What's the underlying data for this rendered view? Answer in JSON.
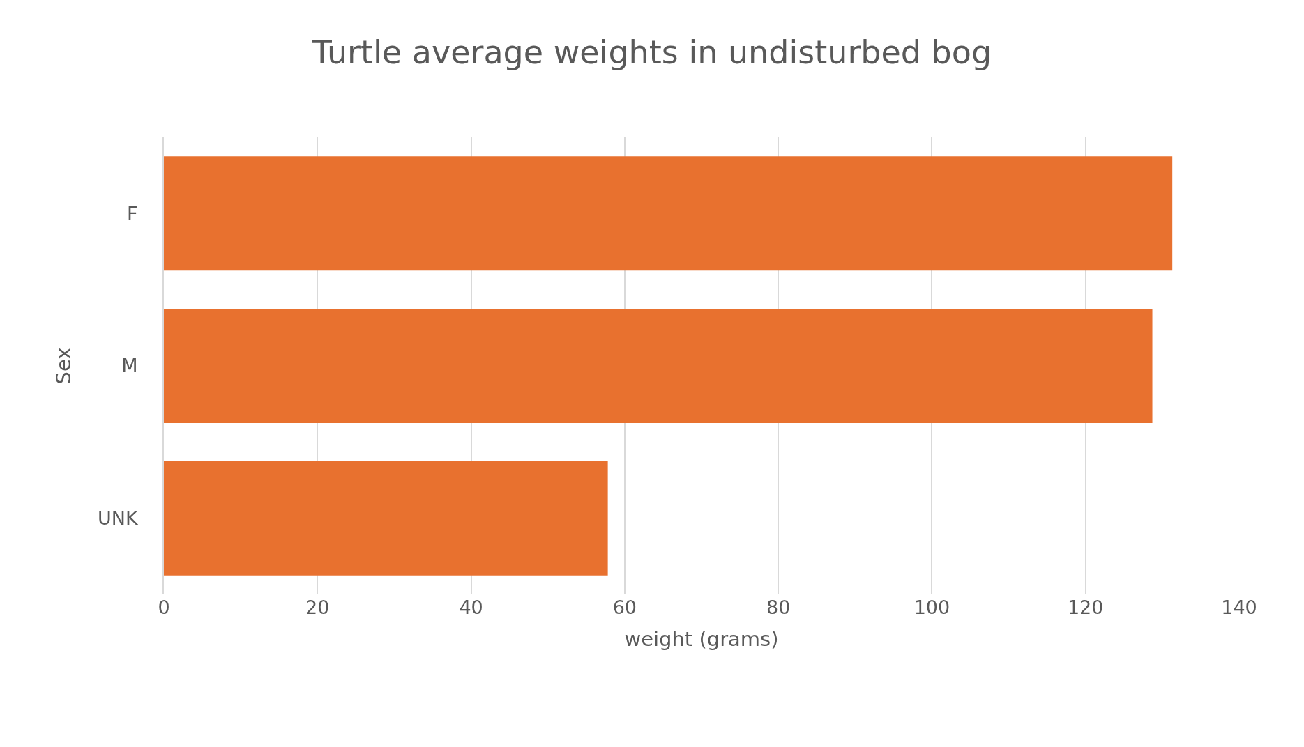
{
  "chart_data": {
    "type": "bar",
    "orientation": "horizontal",
    "title": "Turtle average weights in undisturbed bog",
    "xlabel": "weight (grams)",
    "ylabel": "Sex",
    "categories": [
      "F",
      "M",
      "UNK"
    ],
    "values": [
      131.3,
      128.7,
      57.8
    ],
    "color": "#e8712f",
    "xlim": [
      0,
      140
    ],
    "xticks": [
      0,
      20,
      40,
      60,
      80,
      100,
      120,
      140
    ],
    "grid": "x"
  }
}
